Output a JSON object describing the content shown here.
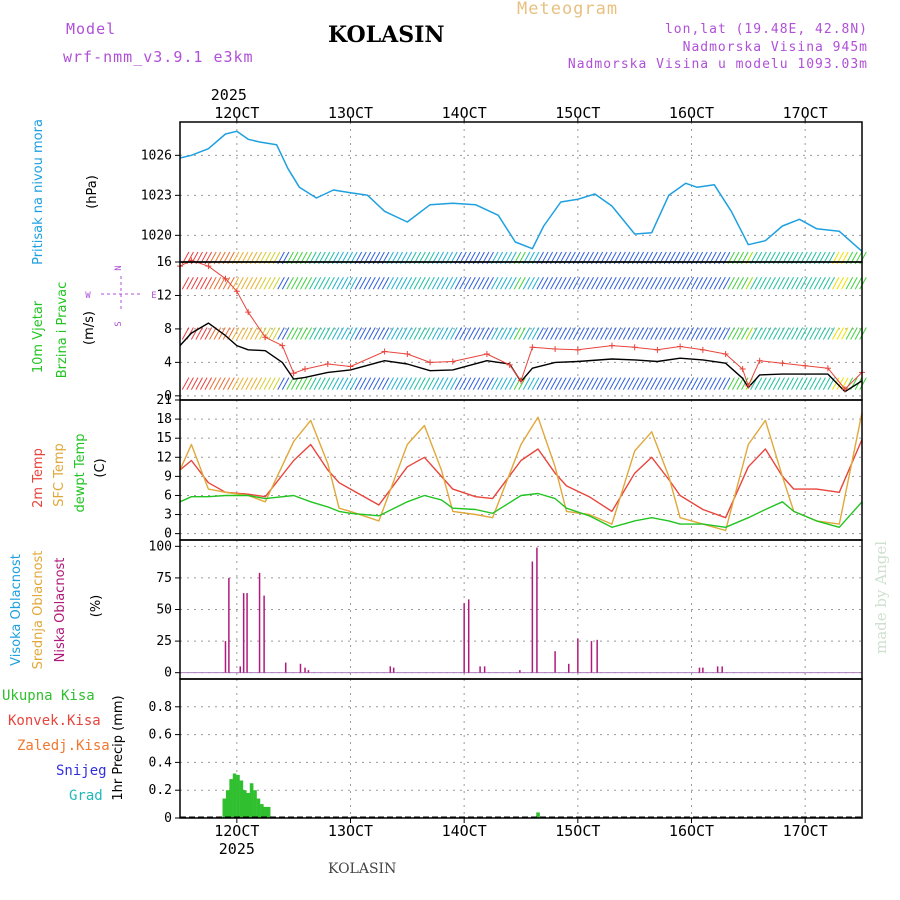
{
  "header": {
    "app_title": "Meteogram",
    "station": "KOLASIN",
    "model_label": "Model",
    "model_name": "wrf-nmm_v3.9.1 e3km",
    "lonlat": "lon,lat (19.48E, 42.8N)",
    "elevation": "Nadmorska Visina 945m",
    "model_elevation": "Nadmorska Visina u modelu 1093.03m",
    "footer_station": "KOLASIN",
    "watermark": "made by Angel"
  },
  "colors": {
    "pressure": "#1ea0e0",
    "temp2m": "#e8453c",
    "sfc": "#e0a83a",
    "dewpt": "#22c422",
    "cloud": "#b01a7a",
    "precip": "#2fbf2f",
    "wind_mean": "#000000",
    "wind_gust": "#e8453c"
  },
  "time_axis": {
    "year": "2025",
    "day_labels": [
      "12OCT",
      "13OCT",
      "14OCT",
      "15OCT",
      "16OCT",
      "17OCT"
    ],
    "day_positions": [
      12,
      13,
      14,
      15,
      16,
      17
    ],
    "range": [
      11.5,
      17.5
    ]
  },
  "chart_data": [
    {
      "type": "line",
      "name": "pressure",
      "ylabel_lines": [
        "Pritisak na nivou mora",
        "(hPa)"
      ],
      "yticks": [
        1020,
        1023,
        1026
      ],
      "ylim": [
        1018,
        1028.5
      ],
      "x": [
        11.5,
        11.6,
        11.75,
        11.9,
        12.0,
        12.1,
        12.2,
        12.35,
        12.45,
        12.55,
        12.7,
        12.85,
        13.0,
        13.15,
        13.3,
        13.5,
        13.7,
        13.9,
        14.1,
        14.3,
        14.45,
        14.6,
        14.7,
        14.85,
        15.0,
        15.15,
        15.3,
        15.5,
        15.65,
        15.8,
        15.95,
        16.05,
        16.2,
        16.35,
        16.5,
        16.65,
        16.8,
        16.95,
        17.1,
        17.3,
        17.5
      ],
      "values": [
        1025.8,
        1026.0,
        1026.5,
        1027.6,
        1027.8,
        1027.2,
        1027.0,
        1026.8,
        1025.0,
        1023.6,
        1022.8,
        1023.4,
        1023.2,
        1023.0,
        1021.8,
        1021.0,
        1022.3,
        1022.4,
        1022.3,
        1021.5,
        1019.5,
        1019.0,
        1020.7,
        1022.5,
        1022.7,
        1023.1,
        1022.2,
        1020.1,
        1020.2,
        1023.0,
        1023.9,
        1023.6,
        1023.8,
        1021.8,
        1019.3,
        1019.6,
        1020.7,
        1021.2,
        1020.5,
        1020.3,
        1018.8
      ]
    },
    {
      "type": "line",
      "name": "wind",
      "ylabel_lines": [
        "10m Vjetar",
        "Brzina i Pravac",
        "(m/s)"
      ],
      "compass": [
        "N",
        "E",
        "S",
        "W"
      ],
      "yticks": [
        0,
        4,
        8,
        12,
        16
      ],
      "ylim": [
        -0.5,
        16
      ],
      "barb_levels": [
        0.5,
        6.5,
        12.5,
        16
      ],
      "series": [
        {
          "name": "mean",
          "x": [
            11.5,
            11.6,
            11.75,
            11.9,
            12.0,
            12.1,
            12.25,
            12.4,
            12.5,
            12.6,
            12.8,
            13.0,
            13.3,
            13.5,
            13.7,
            13.9,
            14.2,
            14.4,
            14.5,
            14.6,
            14.8,
            15.0,
            15.3,
            15.5,
            15.7,
            15.9,
            16.1,
            16.3,
            16.45,
            16.5,
            16.6,
            16.8,
            17.0,
            17.2,
            17.35,
            17.5
          ],
          "values": [
            6.0,
            7.5,
            8.7,
            7.2,
            6.0,
            5.5,
            5.4,
            4.0,
            2.0,
            2.2,
            2.8,
            3.1,
            4.2,
            3.8,
            3.0,
            3.1,
            4.2,
            3.8,
            1.7,
            3.3,
            4.0,
            4.1,
            4.4,
            4.3,
            4.1,
            4.5,
            4.3,
            3.9,
            2.1,
            1.0,
            2.5,
            2.6,
            2.6,
            2.6,
            0.5,
            1.8
          ]
        },
        {
          "name": "gust",
          "x": [
            11.5,
            11.6,
            11.75,
            11.9,
            12.0,
            12.1,
            12.25,
            12.4,
            12.5,
            12.6,
            12.8,
            13.0,
            13.3,
            13.5,
            13.7,
            13.9,
            14.2,
            14.4,
            14.5,
            14.6,
            14.8,
            15.0,
            15.3,
            15.5,
            15.7,
            15.9,
            16.1,
            16.3,
            16.45,
            16.5,
            16.6,
            16.8,
            17.0,
            17.2,
            17.35,
            17.5
          ],
          "values": [
            15.5,
            16.2,
            15.5,
            14.0,
            12.5,
            10.0,
            7.0,
            6.0,
            2.7,
            3.2,
            3.8,
            3.5,
            5.3,
            5.0,
            4.0,
            4.1,
            5.0,
            3.7,
            1.8,
            5.8,
            5.6,
            5.5,
            6.0,
            5.8,
            5.5,
            5.9,
            5.5,
            5.0,
            3.2,
            1.2,
            4.2,
            3.9,
            3.6,
            3.3,
            0.8,
            2.8
          ]
        }
      ]
    },
    {
      "type": "line",
      "name": "temperature",
      "ylabel_lines": [
        "2m Temp",
        "SFC Temp",
        "dewpt Temp",
        "(C)"
      ],
      "yticks": [
        0,
        3,
        6,
        9,
        12,
        15,
        18,
        21
      ],
      "ylim": [
        -1,
        21
      ],
      "series": [
        {
          "name": "2m Temp",
          "x": [
            11.5,
            11.6,
            11.75,
            11.9,
            12.1,
            12.25,
            12.5,
            12.65,
            12.8,
            12.9,
            13.0,
            13.25,
            13.5,
            13.65,
            13.8,
            13.9,
            14.1,
            14.25,
            14.5,
            14.65,
            14.8,
            14.9,
            15.1,
            15.3,
            15.5,
            15.65,
            15.8,
            15.9,
            16.1,
            16.3,
            16.5,
            16.65,
            16.8,
            16.9,
            17.1,
            17.3,
            17.5
          ],
          "values": [
            10,
            11.5,
            8.0,
            6.5,
            6.2,
            5.8,
            11.5,
            14.0,
            10.0,
            8.0,
            7.0,
            4.5,
            10.5,
            12.0,
            9.0,
            7.0,
            5.8,
            5.5,
            11.5,
            13.3,
            9.5,
            7.5,
            5.8,
            3.5,
            9.5,
            12.0,
            8.5,
            6.0,
            3.8,
            2.5,
            10.5,
            13.3,
            9.0,
            7.0,
            7.0,
            6.5,
            14.8
          ]
        },
        {
          "name": "SFC Temp",
          "x": [
            11.5,
            11.6,
            11.75,
            11.9,
            12.1,
            12.25,
            12.5,
            12.65,
            12.8,
            12.9,
            13.0,
            13.25,
            13.5,
            13.65,
            13.8,
            13.9,
            14.1,
            14.25,
            14.5,
            14.65,
            14.8,
            14.9,
            15.1,
            15.3,
            15.5,
            15.65,
            15.8,
            15.9,
            16.1,
            16.3,
            16.5,
            16.65,
            16.8,
            16.9,
            17.1,
            17.3,
            17.5
          ],
          "values": [
            10,
            14.0,
            7.0,
            6.5,
            6.0,
            5.0,
            14.5,
            17.8,
            11.0,
            4.0,
            3.5,
            2.0,
            14.0,
            17.0,
            10.0,
            3.5,
            3.0,
            2.5,
            14.0,
            18.3,
            10.5,
            3.5,
            3.0,
            1.5,
            13.0,
            16.0,
            9.0,
            2.5,
            1.5,
            0.5,
            14.0,
            17.8,
            9.0,
            3.5,
            2.0,
            1.5,
            19.0
          ]
        },
        {
          "name": "dewpt Temp",
          "x": [
            11.5,
            11.6,
            11.75,
            11.9,
            12.1,
            12.25,
            12.5,
            12.65,
            12.8,
            12.9,
            13.0,
            13.25,
            13.5,
            13.65,
            13.8,
            13.9,
            14.1,
            14.25,
            14.5,
            14.65,
            14.8,
            14.9,
            15.1,
            15.3,
            15.5,
            15.65,
            15.8,
            15.9,
            16.1,
            16.3,
            16.5,
            16.65,
            16.8,
            16.9,
            17.1,
            17.3,
            17.5
          ],
          "values": [
            5,
            5.8,
            5.8,
            6.0,
            6.0,
            5.5,
            6.0,
            5.0,
            4.2,
            3.5,
            3.2,
            2.8,
            5.0,
            6.0,
            5.3,
            4.0,
            3.8,
            3.2,
            6.0,
            6.3,
            5.5,
            4.0,
            2.8,
            1.0,
            2.0,
            2.5,
            2.0,
            1.5,
            1.5,
            1.0,
            2.5,
            3.8,
            5.0,
            3.5,
            2.0,
            1.0,
            5.0
          ]
        }
      ]
    },
    {
      "type": "bar",
      "name": "cloudiness",
      "ylabel_lines": [
        "Visoka Oblacnost",
        "Srednja Oblacnost",
        "Niska Oblacnost",
        "(%)"
      ],
      "yticks": [
        0,
        25,
        50,
        75,
        100
      ],
      "ylim": [
        -5,
        105
      ],
      "x": [
        11.9,
        11.93,
        12.03,
        12.06,
        12.09,
        12.2,
        12.24,
        12.43,
        12.56,
        12.6,
        12.63,
        13.35,
        13.38,
        14.0,
        14.04,
        14.14,
        14.18,
        14.49,
        14.6,
        14.64,
        14.8,
        14.92,
        15.0,
        15.12,
        15.17,
        16.07,
        16.1,
        16.23,
        16.27
      ],
      "values": [
        25,
        75,
        5,
        63,
        63,
        79,
        61,
        8,
        7,
        4,
        2,
        5,
        4,
        55,
        58,
        5,
        5,
        2,
        88,
        99,
        17,
        7,
        27,
        25,
        26,
        4,
        4,
        5,
        5
      ]
    },
    {
      "type": "bar",
      "name": "precipitation",
      "ylabel_lines": [
        "1hr Precip (mm)"
      ],
      "legend": [
        "Ukupna Kisa",
        "Konvek.Kisa",
        "Zaledj.Kisa",
        "Snijeg",
        "Grad"
      ],
      "legend_colors": [
        "#2fbf2f",
        "#e8453c",
        "#f07830",
        "#3030e0",
        "#22b8b8"
      ],
      "yticks": [
        0,
        0.2,
        0.4,
        0.6,
        0.8
      ],
      "ylim": [
        0,
        1.0
      ],
      "x": [
        11.89,
        11.92,
        11.95,
        11.98,
        12.01,
        12.04,
        12.07,
        12.1,
        12.13,
        12.16,
        12.19,
        12.22,
        12.25,
        12.28,
        12.31,
        14.65
      ],
      "values": [
        0.14,
        0.2,
        0.28,
        0.32,
        0.31,
        0.27,
        0.2,
        0.18,
        0.25,
        0.2,
        0.14,
        0.1,
        0.08,
        0.08,
        0.0,
        0.04
      ]
    }
  ]
}
